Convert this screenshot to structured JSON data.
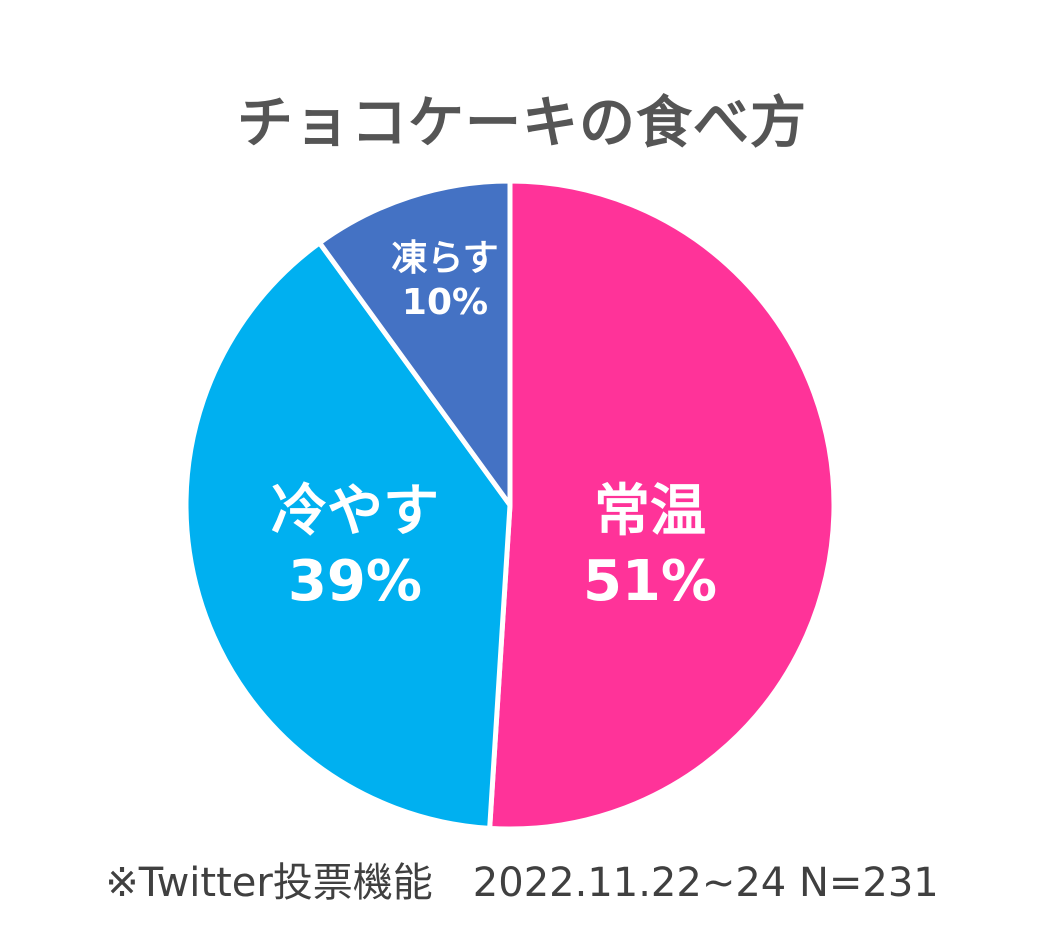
{
  "chart_data": {
    "type": "pie",
    "title": "チョコケーキの食べ方",
    "note": "※Twitter投票機能　2022.11.22~24 N=231",
    "slices": [
      {
        "label": "常温",
        "value": 51,
        "value_label": "51%",
        "color": "#ff3399"
      },
      {
        "label": "冷やす",
        "value": 39,
        "value_label": "39%",
        "color": "#00b0f0"
      },
      {
        "label": "凍らす",
        "value": 10,
        "value_label": "10%",
        "color": "#4472c4"
      }
    ],
    "start_angle_deg": 0,
    "direction": "clockwise",
    "legend": "none"
  }
}
